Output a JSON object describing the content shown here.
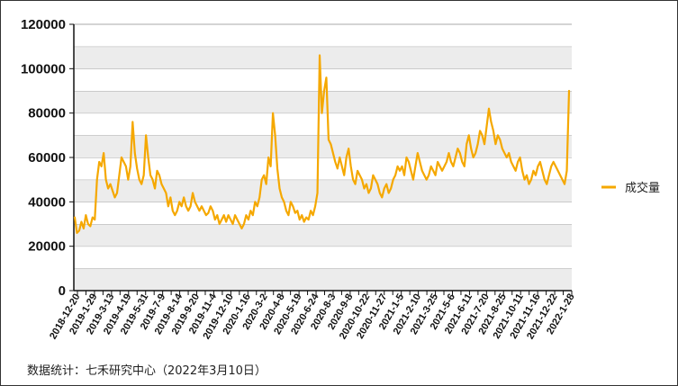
{
  "chart_data": {
    "type": "line",
    "title": "",
    "xlabel": "",
    "ylabel": "",
    "ylim": [
      0,
      120000
    ],
    "y_ticks": [
      "0",
      "20000",
      "40000",
      "60000",
      "80000",
      "100000",
      "120000"
    ],
    "grid": "horizontal bands",
    "legend_position": "right",
    "x_tick_labels": [
      "2018-12-20",
      "2019-1-29",
      "2019-3-13",
      "2019-4-19",
      "2019-5-31",
      "2019-7-9",
      "2019-8-14",
      "2019-9-20",
      "2019-11-4",
      "2019-12-10",
      "2020-1-16",
      "2020-3-2",
      "2020-4-8",
      "2020-5-19",
      "2020-6-24",
      "2020-8-3",
      "2020-9-8",
      "2020-10-22",
      "2020-11-27",
      "2021-1-5",
      "2021-2-10",
      "2021-3-25",
      "2021-5-6",
      "2021-6-11",
      "2021-7-20",
      "2021-8-25",
      "2021-10-11",
      "2021-11-16",
      "2021-12-22",
      "2022-1-28"
    ],
    "series": [
      {
        "name": "成交量",
        "color": "#F5A800",
        "values": [
          33000,
          26000,
          27000,
          31000,
          28000,
          34000,
          30000,
          29000,
          33000,
          32000,
          50000,
          58000,
          56000,
          62000,
          50000,
          46000,
          48000,
          45000,
          42000,
          44000,
          52000,
          60000,
          58000,
          56000,
          50000,
          56000,
          76000,
          62000,
          55000,
          50000,
          48000,
          52000,
          70000,
          60000,
          52000,
          50000,
          46000,
          54000,
          52000,
          48000,
          46000,
          44000,
          38000,
          42000,
          36000,
          34000,
          36000,
          40000,
          38000,
          42000,
          38000,
          36000,
          38000,
          44000,
          40000,
          38000,
          36000,
          38000,
          36000,
          34000,
          35000,
          38000,
          36000,
          32000,
          34000,
          30000,
          32000,
          34000,
          31000,
          34000,
          32000,
          30000,
          34000,
          32000,
          30000,
          28000,
          30000,
          34000,
          32000,
          36000,
          34000,
          40000,
          38000,
          42000,
          50000,
          52000,
          48000,
          60000,
          56000,
          80000,
          70000,
          55000,
          46000,
          42000,
          40000,
          36000,
          34000,
          40000,
          38000,
          35000,
          36000,
          32000,
          34000,
          31000,
          33000,
          32000,
          36000,
          34000,
          38000,
          44000,
          106000,
          80000,
          90000,
          96000,
          68000,
          66000,
          62000,
          58000,
          55000,
          60000,
          56000,
          52000,
          60000,
          64000,
          56000,
          50000,
          48000,
          54000,
          52000,
          50000,
          46000,
          48000,
          44000,
          46000,
          52000,
          50000,
          48000,
          44000,
          42000,
          46000,
          48000,
          44000,
          46000,
          50000,
          52000,
          56000,
          54000,
          56000,
          52000,
          60000,
          58000,
          54000,
          50000,
          56000,
          62000,
          58000,
          54000,
          52000,
          50000,
          52000,
          56000,
          54000,
          52000,
          58000,
          56000,
          54000,
          56000,
          58000,
          62000,
          58000,
          56000,
          60000,
          64000,
          62000,
          58000,
          56000,
          66000,
          70000,
          64000,
          60000,
          62000,
          66000,
          72000,
          70000,
          66000,
          74000,
          82000,
          76000,
          72000,
          66000,
          70000,
          68000,
          64000,
          62000,
          60000,
          62000,
          58000,
          56000,
          54000,
          58000,
          60000,
          54000,
          50000,
          52000,
          48000,
          50000,
          54000,
          52000,
          56000,
          58000,
          54000,
          50000,
          48000,
          52000,
          56000,
          58000,
          56000,
          54000,
          52000,
          50000,
          48000,
          54000,
          90000
        ]
      }
    ]
  },
  "legend": {
    "label": "成交量",
    "color": "#F5A800"
  },
  "source": "数据统计：七禾研究中心（2022年3月10日）"
}
